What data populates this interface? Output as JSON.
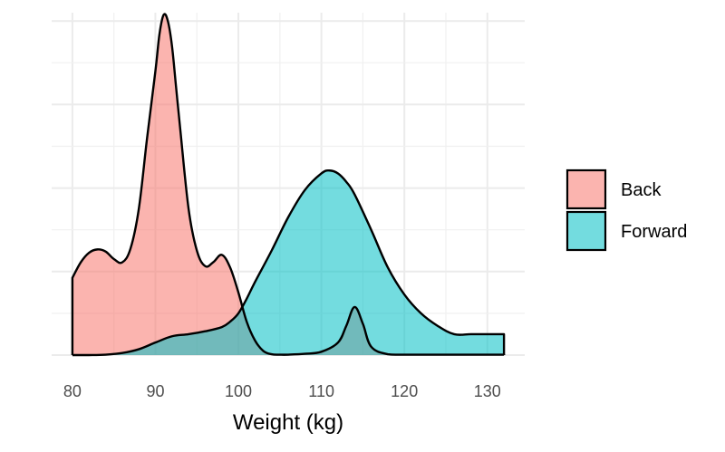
{
  "chart_data": {
    "type": "area",
    "xlabel": "Weight (kg)",
    "ylabel": "",
    "x_ticks": [
      80,
      90,
      100,
      110,
      120,
      130
    ],
    "xlim": [
      77.5,
      134.5
    ],
    "ylim": [
      0,
      0.082
    ],
    "y_gridlines": [
      0,
      0.01,
      0.02,
      0.03,
      0.04,
      0.05,
      0.06,
      0.07,
      0.08
    ],
    "grid": true,
    "legend_position": "right",
    "series": [
      {
        "name": "Back",
        "color": "#F8766D",
        "x": [
          80,
          81,
          82,
          83,
          84,
          85,
          86,
          87,
          88,
          89,
          90,
          90.5,
          91,
          91.5,
          92,
          92.5,
          93,
          94,
          95,
          96,
          97,
          98,
          99,
          100,
          101,
          102,
          103,
          104,
          105,
          106,
          108,
          110,
          112,
          113,
          114,
          115,
          116,
          118,
          120,
          125,
          130,
          132
        ],
        "y": [
          0.0185,
          0.0222,
          0.0245,
          0.0253,
          0.0248,
          0.023,
          0.0222,
          0.0255,
          0.035,
          0.052,
          0.068,
          0.077,
          0.0815,
          0.08,
          0.074,
          0.064,
          0.054,
          0.035,
          0.025,
          0.0213,
          0.0223,
          0.024,
          0.021,
          0.015,
          0.008,
          0.0035,
          0.001,
          0.0002,
          0.0001,
          0.0001,
          0.0003,
          0.0008,
          0.003,
          0.007,
          0.0115,
          0.0075,
          0.002,
          0.0002,
          0.0001,
          0.0001,
          0.0001,
          0.0001
        ]
      },
      {
        "name": "Forward",
        "color": "#00BFC4",
        "x": [
          80,
          82,
          84,
          86,
          88,
          90,
          92,
          94,
          96,
          98,
          99,
          100,
          101,
          102,
          104,
          106,
          108,
          110,
          111,
          112,
          113,
          114,
          116,
          118,
          120,
          122,
          124,
          126,
          128,
          130,
          132
        ],
        "y": [
          0.0,
          0.0,
          0.0001,
          0.0005,
          0.0014,
          0.003,
          0.0045,
          0.005,
          0.0057,
          0.0067,
          0.008,
          0.01,
          0.0135,
          0.0175,
          0.025,
          0.033,
          0.0395,
          0.0435,
          0.0442,
          0.0435,
          0.0415,
          0.0385,
          0.03,
          0.021,
          0.0145,
          0.01,
          0.007,
          0.005,
          0.005,
          0.005,
          0.005
        ]
      }
    ]
  }
}
